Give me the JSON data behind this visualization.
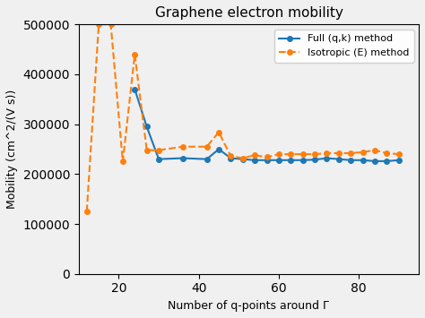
{
  "title": "Graphene electron mobility",
  "xlabel": "Number of q-points around Γ",
  "ylabel": "Mobility (cm^²/(V s))",
  "ylim": [
    0,
    500000
  ],
  "xlim": [
    10,
    95
  ],
  "yticks": [
    0,
    100000,
    200000,
    300000,
    400000,
    500000
  ],
  "ytick_labels": [
    "0",
    "100000",
    "200000",
    "300000",
    "400000",
    "500000"
  ],
  "xticks": [
    20,
    40,
    60,
    80
  ],
  "full_x": [
    24,
    27,
    30,
    36,
    42,
    45,
    48,
    51,
    54,
    57,
    60,
    63,
    66,
    69,
    72,
    75,
    78,
    81,
    84,
    87,
    90
  ],
  "full_y": [
    370000,
    295000,
    230000,
    232000,
    230000,
    250000,
    232000,
    230000,
    228000,
    228000,
    228000,
    228000,
    228000,
    229000,
    232000,
    230000,
    228000,
    228000,
    226000,
    226000,
    228000
  ],
  "iso_x": [
    12,
    15,
    18,
    21,
    24,
    27,
    30,
    36,
    42,
    45,
    48,
    51,
    54,
    57,
    60,
    63,
    66,
    69,
    72,
    75,
    78,
    81,
    84,
    87,
    90
  ],
  "iso_y": [
    125000,
    500000,
    500000,
    225000,
    440000,
    248000,
    248000,
    255000,
    255000,
    284000,
    236000,
    232000,
    238000,
    234000,
    240000,
    240000,
    240000,
    240000,
    242000,
    242000,
    242000,
    244000,
    248000,
    242000,
    240000
  ],
  "full_color": "#1f77b4",
  "iso_color": "#ff7f0e",
  "bg_color": "#f0f0f0",
  "legend_full": "Full (q,k) method",
  "legend_iso": "Isotropic (E) method"
}
